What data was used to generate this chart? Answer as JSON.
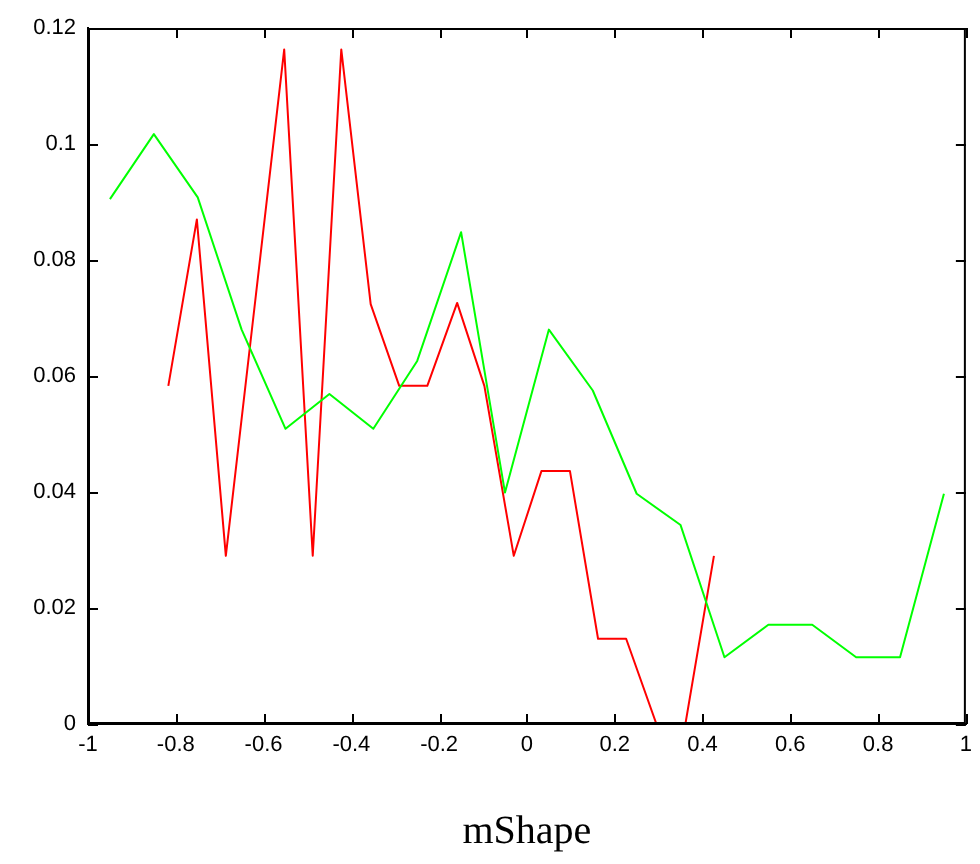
{
  "chart_data": {
    "type": "line",
    "xlabel": "mShape",
    "xlim": [
      -1,
      1
    ],
    "xticks": [
      -1,
      -0.8,
      -0.6,
      -0.4,
      -0.2,
      0,
      0.2,
      0.4,
      0.6,
      0.8,
      1
    ],
    "ylim": [
      0,
      0.12
    ],
    "yticks": [
      0,
      0.02,
      0.04,
      0.06,
      0.08,
      0.1,
      0.12
    ],
    "grid": false,
    "legend": false,
    "marker": "none",
    "line_style": "solid",
    "series": [
      {
        "color": "#00ff00",
        "x": [
          -0.95,
          -0.85,
          -0.75,
          -0.65,
          -0.55,
          -0.45,
          -0.35,
          -0.25,
          -0.15,
          -0.05,
          0.05,
          0.15,
          0.25,
          0.35,
          0.45,
          0.55,
          0.65,
          0.75,
          0.85,
          0.95
        ],
        "values": [
          0.0905,
          0.1017,
          0.0908,
          0.068,
          0.0509,
          0.0569,
          0.0509,
          0.0626,
          0.0848,
          0.0399,
          0.068,
          0.0575,
          0.0397,
          0.0343,
          0.0115,
          0.0171,
          0.0171,
          0.0115,
          0.0115,
          0.0397
        ]
      },
      {
        "color": "#ff0000",
        "x": [
          -0.817,
          -0.752,
          -0.686,
          -0.553,
          -0.488,
          -0.423,
          -0.356,
          -0.291,
          -0.227,
          -0.159,
          -0.097,
          -0.03,
          0.033,
          0.098,
          0.162,
          0.226,
          0.295,
          0.361,
          0.426
        ],
        "values": [
          0.0583,
          0.087,
          0.029,
          0.1163,
          0.029,
          0.1163,
          0.0724,
          0.0583,
          0.0583,
          0.0726,
          0.0583,
          0.029,
          0.0436,
          0.0436,
          0.0147,
          0.0147,
          0,
          0,
          0.029
        ]
      }
    ]
  }
}
